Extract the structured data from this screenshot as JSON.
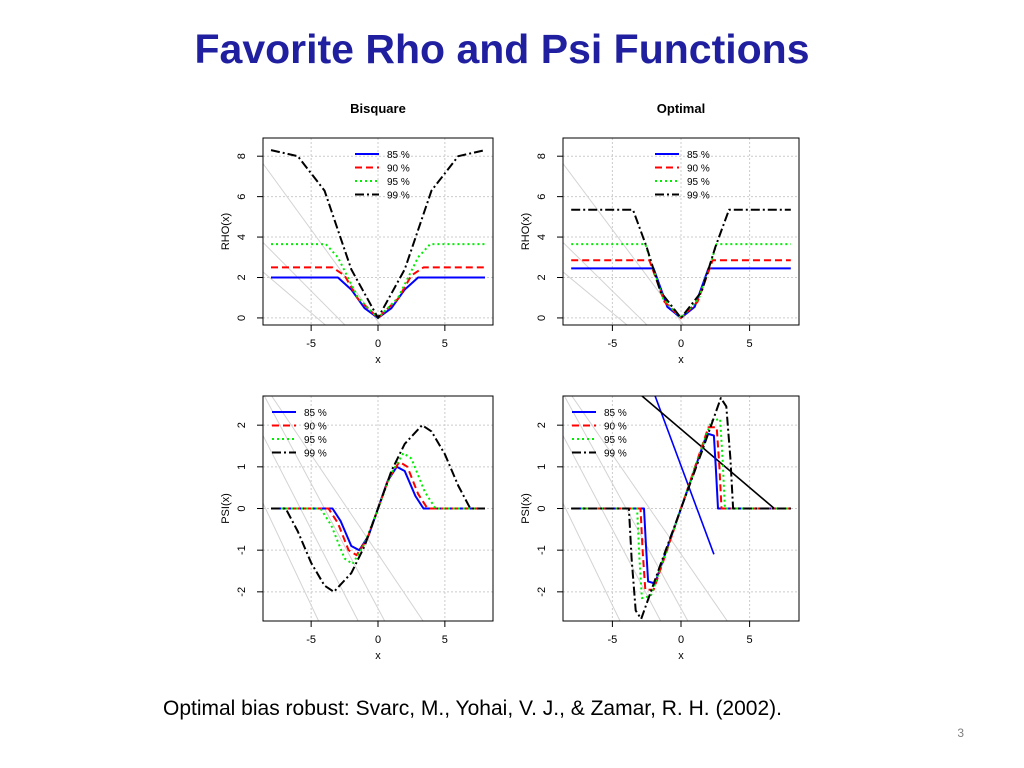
{
  "slide": {
    "title": "Favorite Rho and Psi Functions",
    "citation": "Optimal bias robust:  Svarc, M., Yohai, V. J., & Zamar, R. H. (2002).",
    "page_number": "3"
  },
  "colors": {
    "title": "#1f1f9f",
    "85 %": "#0000ff",
    "90 %": "#ff0000",
    "95 %": "#00ee00",
    "99 %": "#000000",
    "gridline": "#cccccc",
    "projection": "#d3d3d3"
  },
  "chart_data": [
    {
      "type": "line",
      "title": "Bisquare",
      "xlabel": "x",
      "ylabel": "RHO(x)",
      "xlim": [
        -8.6,
        8.6
      ],
      "ylim": [
        -0.35,
        8.9
      ],
      "xticks": [
        -5,
        0,
        5
      ],
      "xtick_labels": [
        "-5",
        "0",
        "5"
      ],
      "yticks": [
        0,
        2,
        4,
        6,
        8
      ],
      "ytick_labels": [
        "0",
        "2",
        "4",
        "6",
        "8"
      ],
      "grid": true,
      "legend": {
        "position": "top-right",
        "entries": [
          "85 %",
          "90 %",
          "95 %",
          "99 %"
        ]
      },
      "series": [
        {
          "name": "85 %",
          "style": "solid",
          "color": "#0000ff",
          "x": [
            -8,
            -3,
            -2,
            -1,
            0,
            1,
            2,
            3,
            8
          ],
          "y": [
            2.0,
            2.0,
            1.4,
            0.48,
            0,
            0.48,
            1.4,
            2.0,
            2.0
          ]
        },
        {
          "name": "90 %",
          "style": "dashed",
          "color": "#ff0000",
          "x": [
            -8,
            -3.4,
            -2.5,
            -1.5,
            0,
            1.5,
            2.5,
            3.4,
            8
          ],
          "y": [
            2.5,
            2.5,
            2.1,
            0.95,
            0,
            0.95,
            2.1,
            2.5,
            2.5
          ]
        },
        {
          "name": "95 %",
          "style": "dotted",
          "color": "#00ee00",
          "x": [
            -8,
            -3.9,
            -3,
            -1.5,
            0,
            1.5,
            3,
            3.9,
            8
          ],
          "y": [
            3.65,
            3.65,
            3.0,
            1.0,
            0,
            1.0,
            3.0,
            3.65,
            3.65
          ]
        },
        {
          "name": "99 %",
          "style": "dashdot",
          "color": "#000000",
          "x": [
            -8,
            -6,
            -4,
            -2,
            0,
            2,
            4,
            6,
            8
          ],
          "y": [
            8.3,
            8.0,
            6.3,
            2.4,
            0,
            2.4,
            6.3,
            8.0,
            8.3
          ]
        }
      ]
    },
    {
      "type": "line",
      "title": "Optimal",
      "xlabel": "x",
      "ylabel": "RHO(x)",
      "xlim": [
        -8.6,
        8.6
      ],
      "ylim": [
        -0.35,
        8.9
      ],
      "xticks": [
        -5,
        0,
        5
      ],
      "xtick_labels": [
        "-5",
        "0",
        "5"
      ],
      "yticks": [
        0,
        2,
        4,
        6,
        8
      ],
      "ytick_labels": [
        "0",
        "2",
        "4",
        "6",
        "8"
      ],
      "grid": true,
      "legend": {
        "position": "top-right",
        "entries": [
          "85 %",
          "90 %",
          "95 %",
          "99 %"
        ]
      },
      "series": [
        {
          "name": "85 %",
          "style": "solid",
          "color": "#0000ff",
          "x": [
            -8,
            -2,
            -1,
            0,
            1,
            2,
            8
          ],
          "y": [
            2.45,
            2.45,
            0.55,
            0,
            0.55,
            2.45,
            2.45
          ]
        },
        {
          "name": "90 %",
          "style": "dashed",
          "color": "#ff0000",
          "x": [
            -8,
            -2.3,
            -1.2,
            0,
            1.2,
            2.3,
            8
          ],
          "y": [
            2.85,
            2.85,
            0.8,
            0,
            0.8,
            2.85,
            2.85
          ]
        },
        {
          "name": "95 %",
          "style": "dotted",
          "color": "#00ee00",
          "x": [
            -8,
            -2.6,
            -1.3,
            0,
            1.3,
            2.6,
            8
          ],
          "y": [
            3.65,
            3.65,
            0.95,
            0,
            0.95,
            3.65,
            3.65
          ]
        },
        {
          "name": "99 %",
          "style": "dashdot",
          "color": "#000000",
          "x": [
            -8,
            -3.5,
            -2.5,
            -1.5,
            0,
            1.5,
            2.5,
            3.5,
            8
          ],
          "y": [
            5.35,
            5.35,
            3.5,
            1.3,
            0,
            1.3,
            3.5,
            5.35,
            5.35
          ]
        }
      ]
    },
    {
      "type": "line",
      "title": "",
      "xlabel": "x",
      "ylabel": "PSI(x)",
      "xlim": [
        -8.6,
        8.6
      ],
      "ylim": [
        -2.7,
        2.7
      ],
      "xticks": [
        -5,
        0,
        5
      ],
      "xtick_labels": [
        "-5",
        "0",
        "5"
      ],
      "yticks": [
        -2,
        -1,
        0,
        1,
        2
      ],
      "ytick_labels": [
        "-2",
        "-1",
        "0",
        "1",
        "2"
      ],
      "grid": true,
      "legend": {
        "position": "top-left",
        "entries": [
          "85 %",
          "90 %",
          "95 %",
          "99 %"
        ]
      },
      "series": [
        {
          "name": "85 %",
          "style": "solid",
          "color": "#0000ff",
          "x": [
            -8,
            -3.4,
            -2.8,
            -2,
            -1.4,
            -0.7,
            0,
            0.7,
            1.4,
            2,
            2.8,
            3.4,
            8
          ],
          "y": [
            0,
            0,
            -0.3,
            -0.9,
            -1.0,
            -0.65,
            0,
            0.65,
            1.0,
            0.9,
            0.3,
            0,
            0
          ]
        },
        {
          "name": "90 %",
          "style": "dashed",
          "color": "#ff0000",
          "x": [
            -8,
            -3.7,
            -3,
            -2.2,
            -1.6,
            -0.8,
            0,
            0.8,
            1.6,
            2.2,
            3,
            3.7,
            8
          ],
          "y": [
            0,
            0,
            -0.35,
            -1.0,
            -1.12,
            -0.72,
            0,
            0.72,
            1.12,
            1.0,
            0.35,
            0,
            0
          ]
        },
        {
          "name": "95 %",
          "style": "dotted",
          "color": "#00ee00",
          "x": [
            -8,
            -4.3,
            -3.5,
            -2.5,
            -1.9,
            -1,
            0,
            1,
            1.9,
            2.5,
            3.5,
            4.3,
            8
          ],
          "y": [
            0,
            0,
            -0.4,
            -1.2,
            -1.33,
            -0.85,
            0,
            0.85,
            1.33,
            1.2,
            0.4,
            0,
            0
          ]
        },
        {
          "name": "99 %",
          "style": "dashdot",
          "color": "#000000",
          "x": [
            -8,
            -6.9,
            -6,
            -5,
            -4,
            -3.3,
            -2,
            -1,
            0,
            1,
            2,
            3.3,
            4,
            5,
            6,
            6.9,
            8
          ],
          "y": [
            0,
            0,
            -0.55,
            -1.3,
            -1.85,
            -2.0,
            -1.55,
            -0.9,
            0,
            0.9,
            1.55,
            2.0,
            1.85,
            1.3,
            0.55,
            0,
            0
          ]
        }
      ]
    },
    {
      "type": "line",
      "title": "",
      "xlabel": "x",
      "ylabel": "PSI(x)",
      "xlim": [
        -8.6,
        8.6
      ],
      "ylim": [
        -2.7,
        2.7
      ],
      "xticks": [
        -5,
        0,
        5
      ],
      "xtick_labels": [
        "-5",
        "0",
        "5"
      ],
      "yticks": [
        -2,
        -1,
        0,
        1,
        2
      ],
      "ytick_labels": [
        "-2",
        "-1",
        "0",
        "1",
        "2"
      ],
      "grid": true,
      "legend": {
        "position": "top-left",
        "entries": [
          "85 %",
          "90 %",
          "95 %",
          "99 %"
        ]
      },
      "series": [
        {
          "name": "85 %",
          "style": "solid",
          "color": "#0000ff",
          "x": [
            -8,
            -2.7,
            -2.55,
            -2.4,
            -1.9,
            0,
            1.9,
            2.4,
            2.55,
            2.7,
            8
          ],
          "y": [
            0,
            0,
            -0.9,
            -1.75,
            -1.8,
            0,
            1.8,
            1.75,
            0.9,
            0,
            0
          ]
        },
        {
          "name": "90 %",
          "style": "dashed",
          "color": "#ff0000",
          "x": [
            -8,
            -2.95,
            -2.8,
            -2.6,
            -2.0,
            0,
            2.0,
            2.6,
            2.8,
            2.95,
            8
          ],
          "y": [
            0,
            0,
            -1.0,
            -1.95,
            -1.95,
            0,
            1.95,
            1.95,
            1.0,
            0,
            0
          ]
        },
        {
          "name": "95 %",
          "style": "dotted",
          "color": "#00ee00",
          "x": [
            -8,
            -3.2,
            -3.05,
            -2.85,
            -2.2,
            0,
            2.2,
            2.85,
            3.05,
            3.2,
            8
          ],
          "y": [
            0,
            0,
            -1.1,
            -2.15,
            -2.1,
            0,
            2.1,
            2.15,
            1.1,
            0,
            0
          ]
        },
        {
          "name": "99 %",
          "style": "dashdot",
          "color": "#000000",
          "x": [
            -8,
            -3.8,
            -3.6,
            -3.3,
            -2.9,
            -1.5,
            0,
            1.5,
            2.9,
            3.3,
            3.6,
            3.8,
            8
          ],
          "y": [
            0,
            0,
            -1.2,
            -2.45,
            -2.65,
            -1.35,
            0,
            1.35,
            2.65,
            2.45,
            1.2,
            0,
            0
          ]
        }
      ],
      "reference_lines": [
        {
          "color": "#0000ff",
          "x": [
            -2.0,
            2.4
          ],
          "y": [
            2.8,
            -1.1
          ]
        },
        {
          "color": "#000000",
          "x": [
            -3.2,
            6.8
          ],
          "y": [
            2.8,
            0.0
          ]
        }
      ]
    }
  ]
}
